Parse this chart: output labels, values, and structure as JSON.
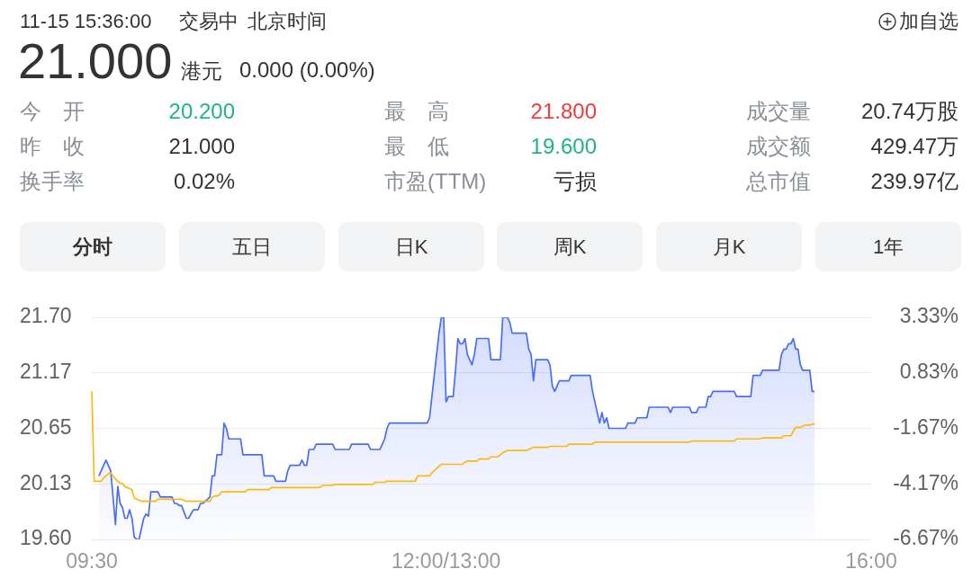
{
  "chart_data": {
    "type": "line",
    "annotations": [
      "11-15 15:36:00",
      "交易中",
      "北京时间",
      "加自选",
      "21.000",
      "港元",
      "0.000 (0.00%)",
      "今 开",
      "20.200",
      "最 高",
      "21.800",
      "成交量",
      "20.74万股",
      "昨 收",
      "21.000",
      "最 低",
      "19.600",
      "成交额",
      "429.47万",
      "换手率",
      "0.02%",
      "市盈(TTM)",
      "亏损",
      "总市值",
      "239.97亿",
      "分时",
      "五日",
      "日K",
      "周K",
      "月K",
      "1年"
    ],
    "categories": [
      "09:30",
      null,
      null,
      null,
      null,
      null,
      null,
      null,
      null,
      null,
      null,
      null,
      null,
      null,
      null,
      null,
      null,
      null,
      null,
      null,
      null,
      null,
      null,
      null,
      null,
      null,
      null,
      null,
      null,
      null,
      null,
      null,
      null,
      null,
      null,
      null,
      null,
      null,
      null,
      null,
      null,
      null,
      null,
      null,
      null,
      null,
      null,
      null,
      null,
      null,
      null,
      null,
      null,
      null,
      null,
      null,
      null,
      null,
      null,
      null,
      null,
      null,
      null,
      null,
      null,
      null,
      null,
      null,
      null,
      null,
      null,
      null,
      null,
      null,
      null,
      null,
      null,
      null,
      null,
      null,
      null,
      null,
      null,
      null,
      null,
      null,
      null,
      null,
      null,
      null,
      null,
      null,
      null,
      null,
      null,
      null,
      null,
      null,
      null,
      null,
      null,
      null,
      null,
      null,
      null,
      null,
      null,
      null,
      null,
      null,
      null,
      null,
      null,
      null,
      null,
      null,
      null,
      null,
      null,
      null,
      null,
      null,
      null,
      null,
      null,
      null,
      null,
      null,
      null,
      null,
      null,
      null,
      null,
      null,
      null,
      null,
      null,
      null,
      null,
      null,
      null,
      null,
      null,
      null,
      null,
      null,
      null,
      null,
      null,
      null,
      "12:00/13:00",
      null,
      null,
      null,
      null,
      null,
      null,
      null,
      null,
      null,
      null,
      null,
      null,
      null,
      null,
      null,
      null,
      null,
      null,
      null,
      null,
      null,
      null,
      null,
      null,
      null,
      null,
      null,
      null,
      null,
      null,
      null,
      null,
      null,
      null,
      null,
      null,
      null,
      null,
      null,
      null,
      null,
      null,
      null,
      null,
      null,
      null,
      null,
      null,
      null,
      null,
      null,
      null,
      null,
      null,
      null,
      null,
      null,
      null,
      null,
      null,
      null,
      null,
      null,
      null,
      null,
      null,
      null,
      null,
      null,
      null,
      null,
      null,
      null,
      null,
      null,
      null,
      null,
      null,
      null,
      null,
      null,
      null,
      null,
      null,
      null,
      null,
      null,
      null,
      null,
      null,
      null,
      null,
      null,
      null,
      null,
      null,
      null,
      null,
      null,
      null,
      null,
      null,
      null,
      null,
      null,
      null,
      null,
      null,
      null,
      null,
      null,
      null,
      null,
      null,
      null,
      null,
      null,
      null,
      null,
      null,
      null,
      null,
      null,
      null,
      null,
      null,
      null,
      null,
      null,
      null,
      null,
      null,
      null,
      null,
      null,
      null,
      null,
      null,
      null,
      null,
      null,
      null,
      null,
      null,
      null,
      null,
      null,
      null,
      null,
      null,
      null,
      null,
      null,
      null,
      null,
      null,
      null,
      null,
      null,
      null,
      null,
      null,
      null,
      null,
      null,
      null,
      null,
      null,
      null,
      null,
      null,
      null,
      null,
      null,
      null,
      null,
      null,
      null,
      null,
      "16:00"
    ],
    "ylim": [
      19.6,
      21.7
    ],
    "yticks": [
      {
        "value": 19.6,
        "label": "19.60"
      },
      {
        "value": 20.125,
        "label": "20.13"
      },
      {
        "value": 20.65,
        "label": "20.65"
      },
      {
        "value": 21.175,
        "label": "21.17"
      },
      {
        "value": 21.7,
        "label": "21.70"
      }
    ],
    "y2lim": [
      -6.67,
      3.33
    ],
    "y2ticks": [
      {
        "value": -6.67,
        "label": "-6.67%"
      },
      {
        "value": -4.17,
        "label": "-4.17%"
      },
      {
        "value": -1.67,
        "label": "-1.67%"
      },
      {
        "value": 0.83,
        "label": "0.83%"
      },
      {
        "value": 3.33,
        "label": "3.33%"
      }
    ],
    "grid": "y",
    "series": [
      {
        "type": "area",
        "color": "#4a6cf6",
        "values": [
          null,
          null,
          null,
          20.2,
          20.25,
          20.3,
          20.35,
          20.3,
          20.25,
          20.0,
          19.74,
          20.1,
          19.94,
          19.9,
          19.8,
          19.8,
          19.88,
          19.8,
          19.62,
          19.6,
          19.6,
          19.7,
          19.8,
          19.84,
          19.82,
          20.05,
          20.05,
          20.05,
          20.05,
          20.0,
          20.0,
          20.0,
          20.0,
          20.0,
          20.0,
          19.94,
          19.94,
          19.92,
          19.92,
          19.86,
          19.8,
          19.8,
          19.84,
          19.88,
          19.88,
          19.88,
          19.94,
          19.94,
          19.96,
          19.98,
          20.0,
          20.2,
          20.2,
          20.4,
          20.4,
          20.4,
          20.7,
          20.65,
          20.55,
          20.55,
          20.55,
          20.55,
          20.55,
          20.55,
          20.4,
          20.4,
          20.4,
          20.4,
          20.4,
          20.4,
          20.4,
          20.4,
          20.4,
          20.2,
          20.2,
          20.2,
          20.2,
          20.2,
          20.15,
          20.15,
          20.15,
          20.15,
          20.15,
          20.25,
          20.3,
          20.3,
          20.3,
          20.3,
          20.3,
          20.35,
          20.3,
          20.3,
          20.45,
          20.45,
          20.45,
          20.5,
          20.5,
          20.5,
          20.5,
          20.5,
          20.5,
          20.5,
          20.5,
          20.45,
          20.45,
          20.45,
          20.45,
          20.45,
          20.45,
          20.45,
          20.5,
          20.5,
          20.5,
          20.5,
          20.5,
          20.5,
          20.5,
          20.5,
          20.45,
          20.45,
          20.45,
          20.45,
          20.45,
          20.5,
          20.55,
          20.65,
          20.7,
          20.7,
          20.7,
          20.7,
          20.7,
          20.7,
          20.7,
          20.7,
          20.7,
          20.7,
          20.7,
          20.7,
          20.7,
          20.7,
          20.7,
          20.7,
          20.7,
          20.75,
          20.95,
          21.15,
          21.35,
          21.55,
          21.7,
          21.7,
          20.9,
          20.95,
          20.95,
          20.95,
          21.2,
          21.5,
          21.45,
          21.45,
          21.5,
          21.35,
          21.3,
          21.25,
          21.35,
          21.5,
          21.5,
          21.5,
          21.5,
          21.5,
          21.5,
          21.3,
          21.3,
          21.3,
          21.3,
          21.3,
          21.7,
          21.7,
          21.7,
          21.65,
          21.55,
          21.55,
          21.55,
          21.55,
          21.55,
          21.55,
          21.55,
          21.4,
          21.35,
          21.1,
          21.3,
          21.3,
          21.3,
          21.3,
          21.3,
          21.3,
          21.25,
          21.05,
          21.0,
          21.05,
          21.1,
          21.1,
          21.1,
          21.1,
          21.1,
          21.15,
          21.15,
          21.15,
          21.15,
          21.15,
          21.15,
          21.15,
          21.15,
          21.15,
          21.0,
          20.9,
          20.8,
          20.7,
          20.8,
          20.7,
          20.75,
          20.65,
          20.65,
          20.65,
          20.65,
          20.65,
          20.65,
          20.65,
          20.65,
          20.7,
          20.7,
          20.7,
          20.7,
          20.75,
          20.75,
          20.75,
          20.75,
          20.75,
          20.85,
          20.85,
          20.85,
          20.85,
          20.85,
          20.85,
          20.85,
          20.85,
          20.85,
          20.8,
          20.85,
          20.85,
          20.85,
          20.85,
          20.85,
          20.85,
          20.85,
          20.85,
          20.8,
          20.8,
          20.8,
          20.85,
          20.85,
          20.85,
          20.85,
          20.95,
          20.95,
          21.0,
          21.0,
          21.0,
          21.0,
          21.0,
          21.0,
          21.0,
          21.0,
          21.0,
          21.0,
          20.95,
          20.95,
          20.95,
          20.95,
          20.95,
          20.95,
          20.95,
          21.15,
          21.15,
          21.15,
          21.15,
          21.2,
          21.2,
          21.2,
          21.2,
          21.2,
          21.2,
          21.2,
          21.2,
          21.35,
          21.4,
          21.4,
          21.45,
          21.45,
          21.5,
          21.4,
          21.4,
          21.25,
          21.2,
          21.2,
          21.2,
          21.2,
          21.0,
          21.0,
          null,
          null,
          null,
          null,
          null,
          null,
          null,
          null,
          null,
          null,
          null,
          null,
          null,
          null,
          null,
          null,
          null,
          null,
          null,
          null,
          null,
          null,
          null,
          null
        ]
      },
      {
        "type": "line",
        "color": "#fbb90f",
        "values": [
          21.0,
          20.15,
          20.15,
          20.15,
          20.15,
          20.18,
          20.2,
          20.22,
          20.23,
          20.2,
          20.17,
          20.15,
          20.13,
          20.13,
          20.1,
          20.09,
          20.08,
          20.07,
          19.99,
          19.98,
          19.97,
          19.96,
          19.96,
          19.96,
          19.96,
          19.96,
          19.96,
          19.96,
          19.98,
          19.98,
          19.98,
          19.98,
          19.98,
          19.98,
          19.98,
          19.98,
          19.98,
          19.98,
          19.98,
          19.97,
          19.96,
          19.96,
          19.96,
          19.96,
          19.96,
          19.96,
          19.96,
          19.96,
          19.96,
          19.96,
          19.96,
          20.0,
          20.01,
          20.01,
          20.02,
          20.05,
          20.05,
          20.05,
          20.05,
          20.05,
          20.05,
          20.05,
          20.05,
          20.05,
          20.05,
          20.05,
          20.07,
          20.07,
          20.07,
          20.07,
          20.07,
          20.07,
          20.07,
          20.07,
          20.07,
          20.07,
          20.09,
          20.09,
          20.09,
          20.09,
          20.09,
          20.09,
          20.09,
          20.09,
          20.09,
          20.09,
          20.09,
          20.09,
          20.09,
          20.09,
          20.09,
          20.09,
          20.09,
          20.09,
          20.09,
          20.09,
          20.09,
          20.1,
          20.11,
          20.11,
          20.11,
          20.11,
          20.11,
          20.12,
          20.12,
          20.12,
          20.12,
          20.12,
          20.12,
          20.12,
          20.12,
          20.12,
          20.12,
          20.12,
          20.12,
          20.12,
          20.12,
          20.12,
          20.12,
          20.12,
          20.14,
          20.14,
          20.14,
          20.14,
          20.14,
          20.15,
          20.15,
          20.15,
          20.15,
          20.15,
          20.15,
          20.15,
          20.15,
          20.15,
          20.15,
          20.15,
          20.15,
          20.15,
          20.2,
          20.2,
          20.2,
          20.2,
          20.2,
          20.2,
          20.23,
          20.25,
          20.27,
          20.29,
          20.31,
          20.31,
          20.31,
          20.31,
          20.31,
          20.31,
          20.31,
          20.31,
          20.31,
          20.31,
          20.33,
          20.34,
          20.34,
          20.34,
          20.34,
          20.34,
          20.36,
          20.36,
          20.36,
          20.36,
          20.36,
          20.38,
          20.38,
          20.38,
          20.38,
          20.4,
          20.42,
          20.43,
          20.44,
          20.44,
          20.44,
          20.44,
          20.44,
          20.44,
          20.44,
          20.44,
          20.44,
          20.45,
          20.46,
          20.47,
          20.47,
          20.47,
          20.47,
          20.47,
          20.47,
          20.47,
          20.48,
          20.48,
          20.48,
          20.48,
          20.48,
          20.48,
          20.48,
          20.48,
          20.5,
          20.5,
          20.5,
          20.5,
          20.5,
          20.5,
          20.5,
          20.5,
          20.5,
          20.5,
          20.5,
          20.52,
          20.52,
          20.52,
          20.52,
          20.52,
          20.52,
          20.52,
          20.52,
          20.52,
          20.52,
          20.52,
          20.52,
          20.52,
          20.52,
          20.52,
          20.52,
          20.52,
          20.52,
          20.52,
          20.52,
          20.52,
          20.52,
          20.52,
          20.52,
          20.52,
          20.52,
          20.52,
          20.52,
          20.52,
          20.52,
          20.52,
          20.52,
          20.52,
          20.52,
          20.52,
          20.52,
          20.52,
          20.52,
          20.52,
          20.52,
          20.52,
          20.53,
          20.53,
          20.53,
          20.53,
          20.53,
          20.53,
          20.53,
          20.53,
          20.53,
          20.53,
          20.53,
          20.53,
          20.53,
          20.53,
          20.53,
          20.53,
          20.53,
          20.53,
          20.53,
          20.55,
          20.55,
          20.55,
          20.55,
          20.55,
          20.55,
          20.55,
          20.55,
          20.55,
          20.55,
          20.55,
          20.56,
          20.56,
          20.56,
          20.56,
          20.56,
          20.56,
          20.56,
          20.56,
          20.56,
          20.58,
          20.58,
          20.58,
          20.58,
          20.62,
          20.66,
          20.66,
          20.66,
          20.67,
          20.68,
          20.68,
          20.68,
          20.69,
          20.69,
          null,
          null,
          null,
          null,
          null,
          null,
          null,
          null,
          null,
          null,
          null,
          null,
          null,
          null,
          null,
          null,
          null,
          null,
          null,
          null,
          null,
          null,
          null,
          null
        ]
      }
    ]
  }
}
